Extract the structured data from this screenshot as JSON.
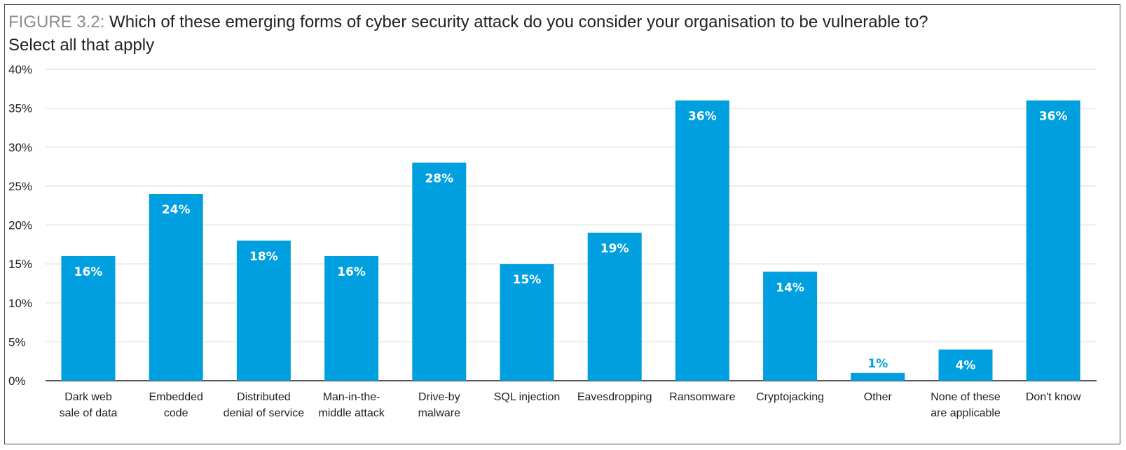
{
  "figure": {
    "label": "FIGURE 3.2",
    "colon": ":",
    "question": " Which of these emerging forms of cyber security attack do you consider your organisation to be vulnerable to?",
    "instruction": "Select all that apply"
  },
  "colors": {
    "bar": "#009fdf",
    "grid": "#e6e6e6",
    "axis": "#231f20",
    "label_inside": "#ffffff",
    "label_outside": "#009fdf"
  },
  "chart_data": {
    "type": "bar",
    "title": "Which of these emerging forms of cyber security attack do you consider your organisation to be vulnerable to?",
    "subtitle": "Select all that apply",
    "categories": [
      [
        "Dark web",
        "sale of data"
      ],
      [
        "Embedded",
        "code"
      ],
      [
        "Distributed",
        "denial of service"
      ],
      [
        "Man-in-the-",
        "middle attack"
      ],
      [
        "Drive-by",
        "malware"
      ],
      [
        "SQL injection"
      ],
      [
        "Eavesdropping"
      ],
      [
        "Ransomware"
      ],
      [
        "Cryptojacking"
      ],
      [
        "Other"
      ],
      [
        "None of these",
        "are applicable"
      ],
      [
        "Don't know"
      ]
    ],
    "values": [
      16,
      24,
      18,
      16,
      28,
      15,
      19,
      36,
      14,
      1,
      4,
      36
    ],
    "data_labels": [
      "16%",
      "24%",
      "18%",
      "16%",
      "28%",
      "15%",
      "19%",
      "36%",
      "14%",
      "1%",
      "4%",
      "36%"
    ],
    "ylim": [
      0,
      40
    ],
    "yticks": [
      0,
      5,
      10,
      15,
      20,
      25,
      30,
      35,
      40
    ],
    "ytick_labels": [
      "0%",
      "5%",
      "10%",
      "15%",
      "20%",
      "25%",
      "30%",
      "35%",
      "40%"
    ],
    "grid": true,
    "legend": "none"
  }
}
